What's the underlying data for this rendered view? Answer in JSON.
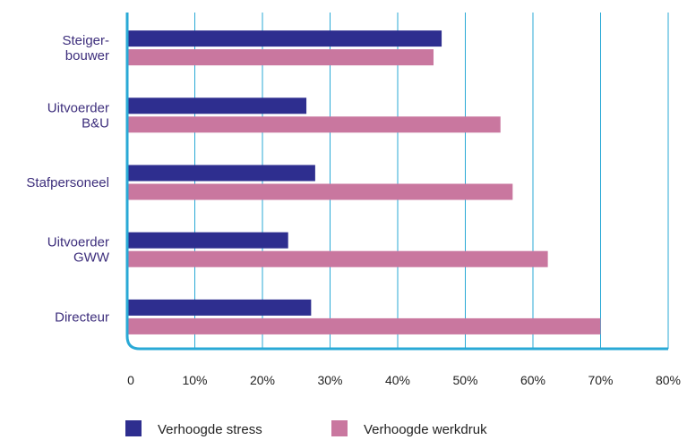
{
  "chart_data": {
    "type": "bar",
    "orientation": "horizontal",
    "categories": [
      [
        "Steiger-",
        "bouwer"
      ],
      [
        "Uitvoerder",
        "B&U"
      ],
      [
        "Stafpersoneel"
      ],
      [
        "Uitvoerder",
        "GWW"
      ],
      [
        "Directeur"
      ]
    ],
    "series": [
      {
        "name": "Verhoogde stress",
        "color": "#2e2e8f",
        "values": [
          46.5,
          26.5,
          27.8,
          23.8,
          27.2
        ]
      },
      {
        "name": "Verhoogde werkdruk",
        "color": "#c9779f",
        "values": [
          45.3,
          55.2,
          57.0,
          62.2,
          70.0
        ]
      }
    ],
    "x_ticks": [
      "0",
      "10%",
      "20%",
      "30%",
      "40%",
      "50%",
      "60%",
      "70%",
      "80%"
    ],
    "xlim": [
      0,
      80
    ],
    "grid": true,
    "legend_position": "bottom",
    "colors": {
      "category_label": "#3d2e7c",
      "grid": "#29a9d6",
      "axis": "#29a9d6"
    }
  }
}
